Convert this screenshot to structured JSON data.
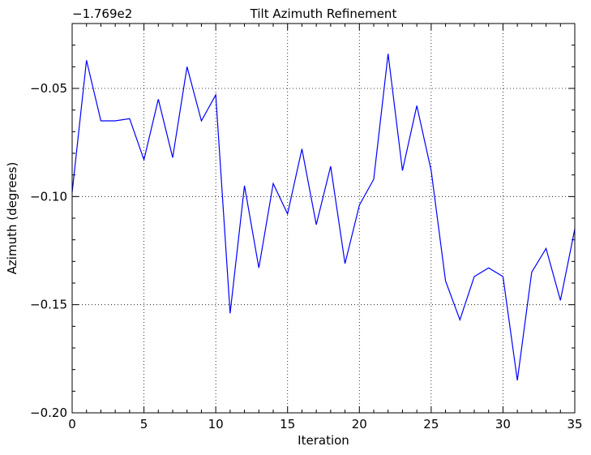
{
  "chart_data": {
    "type": "line",
    "title": "Tilt Azimuth Refinement",
    "xlabel": "Iteration",
    "ylabel": "Azimuth (degrees)",
    "y_offset_label": "−1.769e2",
    "xlim": [
      0,
      35
    ],
    "ylim": [
      -0.2,
      -0.02
    ],
    "x_ticks": [
      0,
      5,
      10,
      15,
      20,
      25,
      30,
      35
    ],
    "x_tick_labels": [
      "0",
      "5",
      "10",
      "15",
      "20",
      "25",
      "30",
      "35"
    ],
    "y_ticks": [
      -0.2,
      -0.15,
      -0.1,
      -0.05
    ],
    "y_tick_labels": [
      "−0.20",
      "−0.15",
      "−0.10",
      "−0.05"
    ],
    "grid": true,
    "series": [
      {
        "color": "#0000ff",
        "x": [
          0,
          1,
          2,
          3,
          4,
          5,
          6,
          7,
          8,
          9,
          10,
          11,
          12,
          13,
          14,
          15,
          16,
          17,
          18,
          19,
          20,
          21,
          22,
          23,
          24,
          25,
          26,
          27,
          28,
          29,
          30,
          31,
          32,
          33,
          34,
          35
        ],
        "y": [
          -0.098,
          -0.037,
          -0.065,
          -0.065,
          -0.064,
          -0.083,
          -0.055,
          -0.082,
          -0.04,
          -0.065,
          -0.053,
          -0.154,
          -0.095,
          -0.133,
          -0.094,
          -0.108,
          -0.078,
          -0.113,
          -0.086,
          -0.131,
          -0.104,
          -0.092,
          -0.034,
          -0.088,
          -0.058,
          -0.088,
          -0.139,
          -0.157,
          -0.137,
          -0.133,
          -0.137,
          -0.185,
          -0.135,
          -0.124,
          -0.148,
          -0.115
        ]
      }
    ]
  }
}
